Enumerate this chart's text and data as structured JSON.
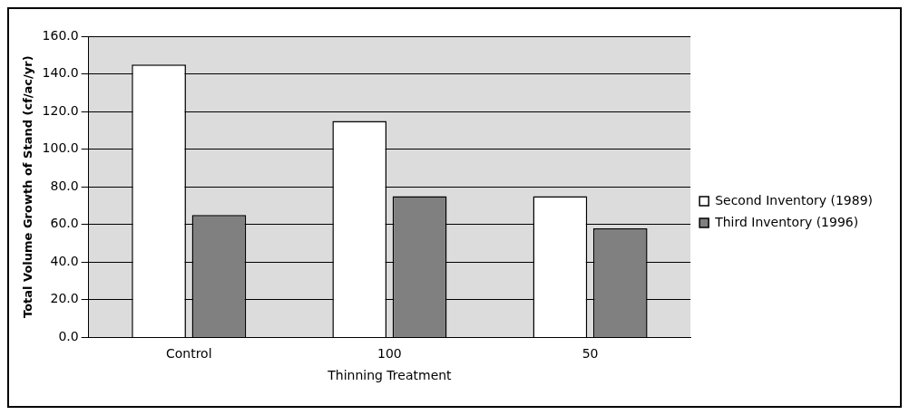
{
  "chart_data": {
    "type": "bar",
    "xlabel": "Thinning Treatment",
    "ylabel": "Total Volume Growth of Stand (cf/ac/yr)",
    "categories": [
      "Control",
      "100",
      "50"
    ],
    "series": [
      {
        "name": "Second Inventory (1989)",
        "color": "#ffffff",
        "values": [
          145,
          115,
          75
        ]
      },
      {
        "name": "Third Inventory (1996)",
        "color": "#808080",
        "values": [
          65,
          75,
          58
        ]
      }
    ],
    "ylim": [
      0,
      160
    ],
    "yticks": [
      {
        "value": 0,
        "label": "0.0"
      },
      {
        "value": 20,
        "label": "20.0"
      },
      {
        "value": 40,
        "label": "40.0"
      },
      {
        "value": 60,
        "label": "60.0"
      },
      {
        "value": 80,
        "label": "80.0"
      },
      {
        "value": 100,
        "label": "100.0"
      },
      {
        "value": 120,
        "label": "120.0"
      },
      {
        "value": 140,
        "label": "140.0"
      },
      {
        "value": 160,
        "label": "160.0"
      }
    ],
    "grid": "y",
    "legend": "right"
  }
}
